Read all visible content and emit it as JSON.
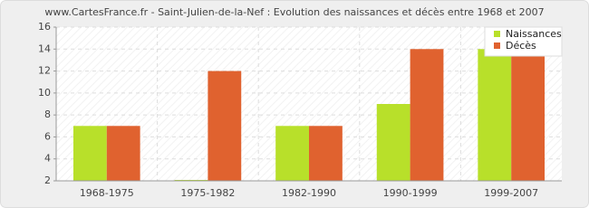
{
  "chart_data": {
    "type": "bar",
    "title": "www.CartesFrance.fr - Saint-Julien-de-la-Nef : Evolution des naissances et décès entre 1968 et 2007",
    "categories": [
      "1968-1975",
      "1975-1982",
      "1982-1990",
      "1990-1999",
      "1999-2007"
    ],
    "series": [
      {
        "name": "Naissances",
        "color": "#b8e02a",
        "values": [
          7,
          2,
          7,
          9,
          14
        ]
      },
      {
        "name": "Décès",
        "color": "#e0622f",
        "values": [
          7,
          12,
          7,
          14,
          14
        ]
      }
    ],
    "ylim": [
      2,
      16
    ],
    "yticks": [
      2,
      4,
      6,
      8,
      10,
      12,
      14,
      16
    ],
    "grid": true,
    "legend": "top-right"
  }
}
